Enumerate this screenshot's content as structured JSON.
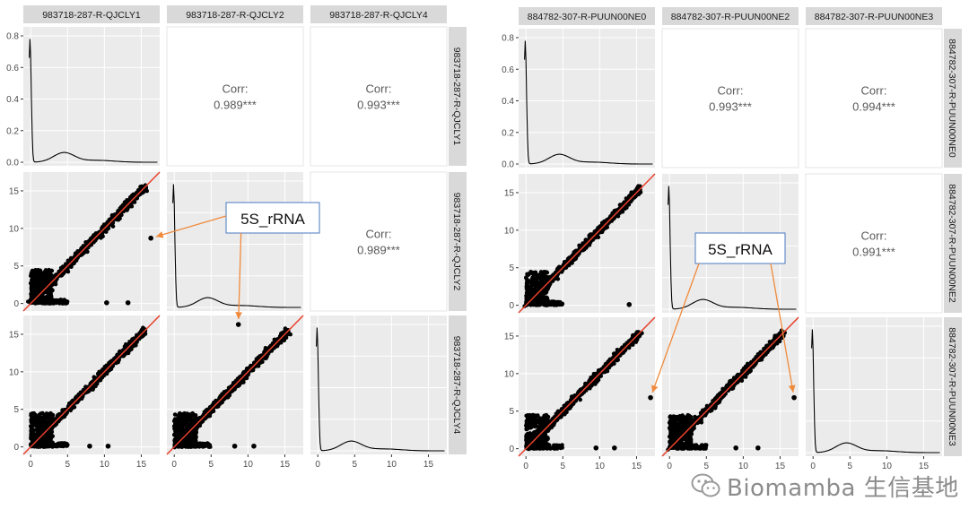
{
  "chart_data": [
    {
      "type": "scatter-matrix",
      "id": "left",
      "samples": [
        "983718-287-R-QJCLY1",
        "983718-287-R-QJCLY2",
        "983718-287-R-QJCLY4"
      ],
      "density_yticks": [
        "0.8",
        "0.6",
        "0.4",
        "0.2",
        "0.0"
      ],
      "density_ylim": [
        0,
        0.8
      ],
      "axis_range": [
        -1,
        17.5
      ],
      "ticks": [
        "0",
        "5",
        "10",
        "15"
      ],
      "corr_label": "Corr:",
      "correlations": [
        {
          "row": 0,
          "col": 1,
          "value": "0.989***"
        },
        {
          "row": 0,
          "col": 2,
          "value": "0.993***"
        },
        {
          "row": 1,
          "col": 2,
          "value": "0.989***"
        }
      ],
      "outliers": [
        {
          "row": 1,
          "col": 0,
          "x": 16.3,
          "y": 8.7
        },
        {
          "row": 2,
          "col": 1,
          "x": 8.7,
          "y": 16.3
        },
        {
          "row": 1,
          "col": 0,
          "x": 10.3,
          "y": 0.1
        },
        {
          "row": 1,
          "col": 0,
          "x": 13.2,
          "y": 0.1
        },
        {
          "row": 2,
          "col": 0,
          "x": 8.0,
          "y": 0.1
        },
        {
          "row": 2,
          "col": 0,
          "x": 10.5,
          "y": 0.1
        },
        {
          "row": 2,
          "col": 1,
          "x": 8.2,
          "y": 0.1
        },
        {
          "row": 2,
          "col": 1,
          "x": 10.8,
          "y": 0.1
        }
      ],
      "annotation": {
        "label": "5S_rRNA",
        "targets": [
          {
            "row": 1,
            "col": 0,
            "x": 16.3,
            "y": 8.7
          },
          {
            "row": 2,
            "col": 1,
            "x": 8.7,
            "y": 16.3
          }
        ]
      }
    },
    {
      "type": "scatter-matrix",
      "id": "right",
      "samples": [
        "884782-307-R-PUUN00NE0",
        "884782-307-R-PUUN00NE2",
        "884782-307-R-PUUN00NE3"
      ],
      "density_yticks": [
        "0.8",
        "0.6",
        "0.4",
        "0.2",
        "0.0"
      ],
      "density_ylim": [
        0,
        0.8
      ],
      "axis_range": [
        -1,
        17.5
      ],
      "ticks": [
        "0",
        "5",
        "10",
        "15"
      ],
      "corr_label": "Corr:",
      "correlations": [
        {
          "row": 0,
          "col": 1,
          "value": "0.993***"
        },
        {
          "row": 0,
          "col": 2,
          "value": "0.994***"
        },
        {
          "row": 1,
          "col": 2,
          "value": "0.991***"
        }
      ],
      "outliers": [
        {
          "row": 2,
          "col": 0,
          "x": 16.9,
          "y": 6.8
        },
        {
          "row": 2,
          "col": 1,
          "x": 16.9,
          "y": 6.8
        },
        {
          "row": 1,
          "col": 0,
          "x": 14.0,
          "y": 0.1
        },
        {
          "row": 2,
          "col": 0,
          "x": 9.5,
          "y": 0.1
        },
        {
          "row": 2,
          "col": 0,
          "x": 12.0,
          "y": 0.1
        },
        {
          "row": 2,
          "col": 1,
          "x": 9.0,
          "y": 0.1
        },
        {
          "row": 2,
          "col": 1,
          "x": 12.0,
          "y": 0.1
        }
      ],
      "annotation": {
        "label": "5S_rRNA",
        "targets": [
          {
            "row": 2,
            "col": 0,
            "x": 16.9,
            "y": 6.8
          },
          {
            "row": 2,
            "col": 1,
            "x": 16.9,
            "y": 6.8
          }
        ]
      }
    }
  ],
  "colors": {
    "panel_bg": "#ebebeb",
    "grid": "#ffffff",
    "strip_bg": "#d9d9d9",
    "point": "#000000",
    "fit_line": "#e8412c",
    "arrow": "#f08a3c",
    "callout_border": "#4a78c2",
    "corr_text": "#595959"
  },
  "watermark": {
    "icon": "wechat-icon",
    "text": "Biomamba 生信基地"
  }
}
